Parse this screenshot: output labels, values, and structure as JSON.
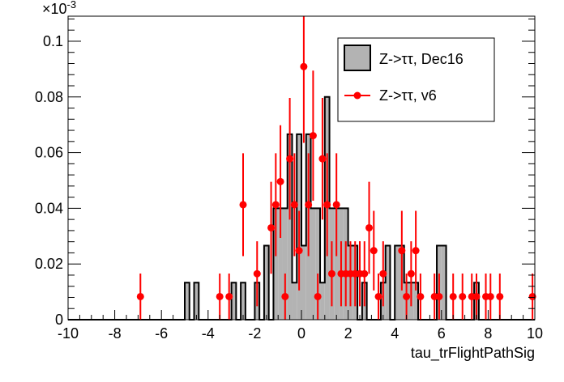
{
  "chart_data": {
    "type": "bar",
    "title": "",
    "xlabel": "tau_trFlightPathSig",
    "ylabel": "",
    "y_multiplier_label": "×10",
    "y_multiplier_exp": "-3",
    "xlim": [
      -10,
      10
    ],
    "ylim": [
      0,
      0.109
    ],
    "x_ticks": [
      "-10",
      "-8",
      "-6",
      "-4",
      "-2",
      "0",
      "2",
      "4",
      "6",
      "8",
      "10"
    ],
    "x_tick_values": [
      -10,
      -8,
      -6,
      -4,
      -2,
      0,
      2,
      4,
      6,
      8,
      10
    ],
    "y_ticks": [
      "0",
      "0.02",
      "0.04",
      "0.06",
      "0.08",
      "0.1"
    ],
    "y_tick_values": [
      0,
      0.02,
      0.04,
      0.06,
      0.08,
      0.1
    ],
    "bin_width": 0.2,
    "legend_position": "top-right",
    "series": [
      {
        "name": "Z->ττ, Dec16",
        "style": "filled-histogram",
        "color": "#b3b3b3",
        "bins_low_edge": [
          -5.0,
          -4.6,
          -3.0,
          -2.6,
          -2.0,
          -1.6,
          -1.2,
          -1.0,
          -0.8,
          -0.6,
          -0.4,
          -0.2,
          0.0,
          0.2,
          0.4,
          0.6,
          0.8,
          1.0,
          1.2,
          1.4,
          1.6,
          1.8,
          2.0,
          2.2,
          2.6,
          3.4,
          3.6,
          4.0,
          4.2,
          4.4,
          4.6,
          4.8,
          5.8,
          6.0,
          7.4
        ],
        "values": [
          0.0133,
          0.0133,
          0.0133,
          0.0133,
          0.0133,
          0.0266,
          0.04,
          0.04,
          0.04,
          0.0666,
          0.0133,
          0.0666,
          0.0266,
          0.0666,
          0.04,
          0.04,
          0.0133,
          0.08,
          0.04,
          0.04,
          0.04,
          0.04,
          0.0266,
          0.0266,
          0.0133,
          0.0133,
          0.0266,
          0.0266,
          0.0266,
          0.0133,
          0.0133,
          0.0133,
          0.0266,
          0.0266,
          0.0133
        ]
      },
      {
        "name": "Z->ττ, v6",
        "style": "points-with-errors",
        "color": "#ff0000",
        "x": [
          -6.9,
          -3.5,
          -3.1,
          -2.5,
          -1.9,
          -1.3,
          -1.1,
          -0.9,
          -0.7,
          -0.5,
          -0.3,
          -0.1,
          0.1,
          0.3,
          0.5,
          0.7,
          0.9,
          1.1,
          1.3,
          1.5,
          1.7,
          1.9,
          2.1,
          2.3,
          2.5,
          2.7,
          2.9,
          3.1,
          3.3,
          3.5,
          4.3,
          4.5,
          4.7,
          4.9,
          5.1,
          5.7,
          5.9,
          6.5,
          6.9,
          7.3,
          7.5,
          7.9,
          8.1,
          8.5,
          9.9
        ],
        "y": [
          0.0083,
          0.0083,
          0.0083,
          0.0413,
          0.0165,
          0.033,
          0.0413,
          0.0496,
          0.0083,
          0.0578,
          0.0413,
          0.0248,
          0.0909,
          0.0413,
          0.0661,
          0.0083,
          0.0578,
          0.0413,
          0.0165,
          0.0413,
          0.0165,
          0.0165,
          0.0165,
          0.0165,
          0.0165,
          0.0165,
          0.033,
          0.0248,
          0.0083,
          0.0165,
          0.0248,
          0.0083,
          0.0165,
          0.0248,
          0.0083,
          0.0083,
          0.0083,
          0.0083,
          0.0083,
          0.0083,
          0.0083,
          0.0083,
          0.0083,
          0.0083,
          0.0083
        ],
        "unit_weight": 0.00826
      }
    ]
  }
}
